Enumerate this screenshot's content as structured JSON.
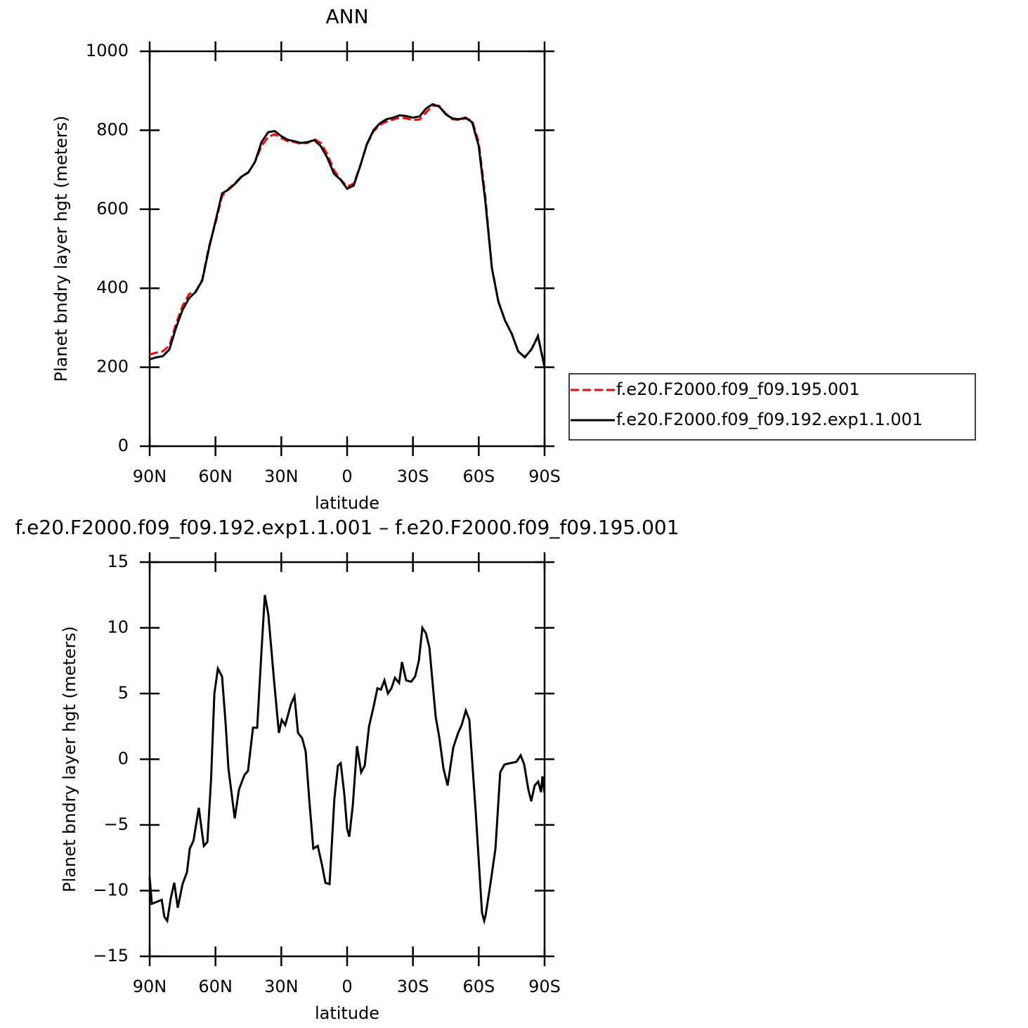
{
  "chart_data": [
    {
      "type": "line",
      "title": "ANN",
      "xlabel": "latitude",
      "ylabel": "Planet bndry layer hgt (meters)",
      "xlim": [
        90,
        -90
      ],
      "xticks": [
        {
          "value": 90,
          "label": "90N"
        },
        {
          "value": 60,
          "label": "60N"
        },
        {
          "value": 30,
          "label": "30N"
        },
        0,
        {
          "value": -30,
          "label": "30S"
        },
        {
          "value": -60,
          "label": "60S"
        },
        {
          "value": -90,
          "label": "90S"
        }
      ],
      "ylim": [
        0,
        1000
      ],
      "yticks": [
        0,
        200,
        400,
        600,
        800,
        1000
      ],
      "legend": "right",
      "x": [
        90,
        87,
        84,
        81,
        78,
        75,
        72,
        69,
        66,
        63,
        60,
        57,
        54,
        51,
        48,
        45,
        42,
        39,
        36,
        33,
        30,
        27,
        24,
        21,
        18,
        15,
        12,
        9,
        6,
        3,
        0,
        -3,
        -6,
        -9,
        -12,
        -15,
        -18,
        -21,
        -24,
        -27,
        -30,
        -33,
        -36,
        -39,
        -42,
        -45,
        -48,
        -51,
        -54,
        -57,
        -60,
        -63,
        -66,
        -69,
        -72,
        -75,
        -78,
        -81,
        -84,
        -87,
        -90
      ],
      "series": [
        {
          "name": "f.e20.F2000.f09_f09.195.001",
          "color": "#ff0000",
          "dashed": true,
          "values": [
            232,
            237,
            240,
            255,
            310,
            355,
            385,
            392,
            422,
            505,
            565,
            633,
            652,
            667,
            684,
            694,
            720,
            760,
            783,
            790,
            780,
            772,
            770,
            766,
            768,
            778,
            768,
            739,
            699,
            676,
            657,
            665,
            710,
            764,
            797,
            814,
            822,
            827,
            832,
            830,
            826,
            827,
            845,
            862,
            862,
            842,
            828,
            826,
            830,
            825,
            770,
            632,
            452,
            366,
            318,
            286,
            240,
            226,
            245,
            280,
            202
          ]
        },
        {
          "name": "f.e20.F2000.f09_f09.192.exp1.1.001",
          "color": "#000000",
          "dashed": false,
          "values": [
            220,
            225,
            228,
            245,
            300,
            345,
            375,
            391,
            420,
            500,
            570,
            640,
            650,
            665,
            683,
            693,
            720,
            770,
            795,
            798,
            785,
            776,
            772,
            768,
            770,
            775,
            760,
            730,
            690,
            675,
            652,
            660,
            710,
            765,
            800,
            818,
            828,
            832,
            838,
            836,
            832,
            835,
            855,
            866,
            860,
            840,
            830,
            828,
            832,
            820,
            760,
            620,
            450,
            365,
            318,
            285,
            240,
            225,
            245,
            278,
            200
          ]
        }
      ]
    },
    {
      "type": "line",
      "title": "f.e20.F2000.f09_f09.192.exp1.1.001 – f.e20.F2000.f09_f09.195.001",
      "xlabel": "latitude",
      "ylabel": "Planet bndry layer hgt (meters)",
      "xlim": [
        90,
        -90
      ],
      "xticks": [
        {
          "value": 90,
          "label": "90N"
        },
        {
          "value": 60,
          "label": "60N"
        },
        {
          "value": 30,
          "label": "30N"
        },
        0,
        {
          "value": -30,
          "label": "30S"
        },
        {
          "value": -60,
          "label": "60S"
        },
        {
          "value": -90,
          "label": "90S"
        }
      ],
      "ylim": [
        -15,
        15
      ],
      "yticks": [
        {
          "value": -15,
          "label": "−15"
        },
        {
          "value": -10,
          "label": "−10"
        },
        {
          "value": -5,
          "label": "−5"
        },
        0,
        5,
        10,
        15
      ],
      "x": [
        90,
        89,
        86,
        84.5,
        83.3,
        82,
        80.4,
        78.8,
        77.2,
        75,
        73,
        71.7,
        70,
        67.6,
        65.3,
        63.7,
        62,
        60.5,
        58.9,
        57,
        55.4,
        54.1,
        51.2,
        49.3,
        46.8,
        45.2,
        42.9,
        41,
        39.1,
        37.5,
        35.9,
        33.3,
        31.1,
        29.8,
        28.2,
        25.6,
        24,
        22.4,
        20.5,
        18.9,
        17.3,
        15.4,
        13.4,
        11.5,
        9.9,
        8,
        5.8,
        4.2,
        2.9,
        1.3,
        0,
        -1,
        -2.6,
        -4.5,
        -6.4,
        -8,
        -10,
        -12.2,
        -13.8,
        -15.4,
        -17,
        -18.6,
        -20.2,
        -21.8,
        -23.7,
        -25,
        -26.9,
        -29.2,
        -31,
        -32.7,
        -34.3,
        -35.9,
        -37.5,
        -40.4,
        -42,
        -43.9,
        -45.8,
        -48.4,
        -50.6,
        -52.2,
        -54.1,
        -55.7,
        -58.6,
        -61.5,
        -62.5,
        -63.1,
        -65.3,
        -67.6,
        -69.8,
        -71.7,
        -74.3,
        -77.2,
        -79.1,
        -80.7,
        -82.6,
        -83.9,
        -85.5,
        -87.1,
        -88.4,
        -89,
        -90
      ],
      "series": [
        {
          "color": "#000000",
          "dashed": false,
          "values": [
            -9,
            -11,
            -10.8,
            -10.7,
            -12,
            -12.3,
            -10.6,
            -9.4,
            -11.3,
            -9.5,
            -8.6,
            -6.8,
            -6.2,
            -3.7,
            -6.6,
            -6.3,
            -1.5,
            5,
            6.9,
            6.3,
            2.8,
            -0.7,
            -4.5,
            -2.3,
            -1.2,
            -0.9,
            2.4,
            2.4,
            8,
            12.5,
            11,
            6,
            2,
            3,
            2.6,
            4.2,
            4.8,
            2,
            1.6,
            0.6,
            -3,
            -6.8,
            -6.6,
            -8,
            -9.4,
            -9.5,
            -3,
            -0.5,
            -0.3,
            -2.6,
            -5.3,
            -5.9,
            -3.5,
            1,
            -1,
            -0.5,
            2.5,
            4.1,
            5.4,
            5.3,
            6,
            5,
            5.4,
            6.2,
            5.8,
            7.4,
            6,
            5.9,
            6.3,
            7.5,
            10,
            9.6,
            8.5,
            3.2,
            1.7,
            -0.7,
            -2,
            0.9,
            2,
            2.6,
            3.7,
            3,
            -4,
            -11.7,
            -12.3,
            -11.9,
            -9.5,
            -6.8,
            -1,
            -0.4,
            -0.3,
            -0.2,
            0.3,
            -0.4,
            -2.3,
            -3.2,
            -2,
            -1.7,
            -2.5,
            -1.3,
            -2.6
          ]
        }
      ]
    }
  ]
}
